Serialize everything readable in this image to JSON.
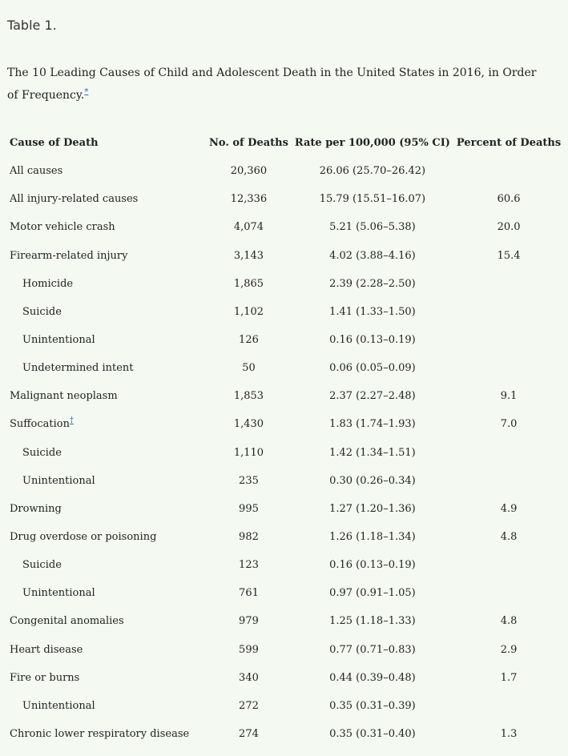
{
  "header": {
    "title": "Table 1."
  },
  "caption": {
    "text": "The 10 Leading Causes of Child and Adolescent Death in the United States in 2016, in Order of Frequency.",
    "footnote": "*"
  },
  "table": {
    "columns": [
      "Cause of Death",
      "No. of Deaths",
      "Rate per 100,000 (95% CI)",
      "Percent of Deaths"
    ],
    "rows": [
      {
        "cause": "All causes",
        "deaths": "20,360",
        "rate": "26.06 (25.70–26.42)"
      },
      {
        "cause": "All injury-related causes",
        "deaths": "12,336",
        "rate": "15.79 (15.51–16.07)",
        "percent": "60.6"
      },
      {
        "cause": "Motor vehicle crash",
        "deaths": "4,074",
        "rate": "5.21 (5.06–5.38)",
        "percent": "20.0"
      },
      {
        "cause": "Firearm-related injury",
        "deaths": "3,143",
        "rate": "4.02 (3.88–4.16)",
        "percent": "15.4"
      },
      {
        "cause": "Homicide",
        "deaths": "1,865",
        "rate": "2.39 (2.28–2.50)"
      },
      {
        "cause": "Suicide",
        "deaths": "1,102",
        "rate": "1.41 (1.33–1.50)"
      },
      {
        "cause": "Unintentional",
        "deaths": "126",
        "rate": "0.16 (0.13–0.19)"
      },
      {
        "cause": "Undetermined intent",
        "deaths": "50",
        "rate": "0.06 (0.05–0.09)"
      },
      {
        "cause": "Malignant neoplasm",
        "deaths": "1,853",
        "rate": "2.37 (2.27–2.48)",
        "percent": "9.1"
      },
      {
        "cause": "Suffocation",
        "footnote": "†",
        "deaths": "1,430",
        "rate": "1.83 (1.74–1.93)",
        "percent": "7.0"
      },
      {
        "cause": "Suicide",
        "deaths": "1,110",
        "rate": "1.42 (1.34–1.51)"
      },
      {
        "cause": "Unintentional",
        "deaths": "235",
        "rate": "0.30 (0.26–0.34)"
      },
      {
        "cause": "Drowning",
        "deaths": "995",
        "rate": "1.27 (1.20–1.36)",
        "percent": "4.9"
      },
      {
        "cause": "Drug overdose or poisoning",
        "deaths": "982",
        "rate": "1.26 (1.18–1.34)",
        "percent": "4.8"
      },
      {
        "cause": "Suicide",
        "deaths": "123",
        "rate": "0.16 (0.13–0.19)"
      },
      {
        "cause": "Unintentional",
        "deaths": "761",
        "rate": "0.97 (0.91–1.05)"
      },
      {
        "cause": "Congenital anomalies",
        "deaths": "979",
        "rate": "1.25 (1.18–1.33)",
        "percent": "4.8"
      },
      {
        "cause": "Heart disease",
        "deaths": "599",
        "rate": "0.77 (0.71–0.83)",
        "percent": "2.9"
      },
      {
        "cause": "Fire or burns",
        "deaths": "340",
        "rate": "0.44 (0.39–0.48)",
        "percent": "1.7"
      },
      {
        "cause": "Unintentional",
        "deaths": "272",
        "rate": "0.35 (0.31–0.39)"
      },
      {
        "cause": "Chronic lower respiratory disease",
        "deaths": "274",
        "rate": "0.35 (0.31–0.40)",
        "percent": "1.3"
      }
    ]
  }
}
